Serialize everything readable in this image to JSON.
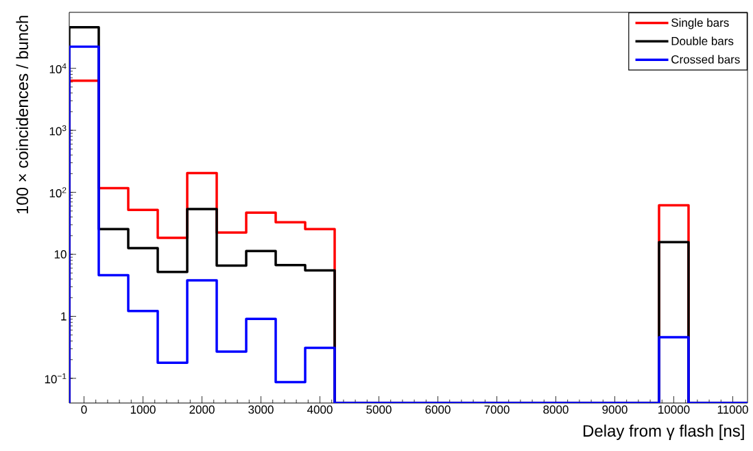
{
  "chart_data": {
    "type": "histogram",
    "xlabel": "Delay from γ flash [ns]",
    "ylabel": "100 × coincidences / bunch",
    "bins": [
      -250,
      250,
      750,
      1250,
      1750,
      2250,
      2750,
      3250,
      3750,
      4250,
      4750,
      5250,
      5750,
      6250,
      6750,
      7250,
      7750,
      8250,
      8750,
      9250,
      9750,
      10250,
      10750,
      11250
    ],
    "series": [
      {
        "name": "Single bars",
        "color": "#ff0000",
        "values": [
          6300,
          117,
          52,
          18.5,
          205,
          22.5,
          47,
          33,
          25.6,
          null,
          null,
          null,
          null,
          null,
          null,
          null,
          null,
          null,
          null,
          null,
          62,
          null,
          null
        ]
      },
      {
        "name": "Double bars",
        "color": "#000000",
        "values": [
          46000,
          25.6,
          12.6,
          5.2,
          53.6,
          6.6,
          11.3,
          6.7,
          5.5,
          null,
          null,
          null,
          null,
          null,
          null,
          null,
          null,
          null,
          null,
          null,
          15.7,
          null,
          null
        ]
      },
      {
        "name": "Crossed bars",
        "color": "#0000ff",
        "values": [
          22400,
          4.6,
          1.22,
          0.178,
          3.8,
          0.27,
          0.91,
          0.087,
          0.31,
          null,
          null,
          null,
          null,
          null,
          null,
          null,
          null,
          null,
          null,
          null,
          0.46,
          null,
          null
        ]
      }
    ],
    "xlim": [
      -250,
      11250
    ],
    "ylim": [
      0.04,
      80000
    ],
    "log": "y",
    "xticks": [
      0,
      1000,
      2000,
      3000,
      4000,
      5000,
      6000,
      7000,
      8000,
      9000,
      10000,
      11000
    ],
    "yticks": [
      {
        "value": 0.1,
        "label": "10$^{−1}$"
      },
      1,
      10,
      {
        "value": 100,
        "label": "10$^{2}$"
      },
      {
        "value": 1000,
        "label": "10$^{3}$"
      },
      {
        "value": 10000,
        "label": "10$^{4}$"
      }
    ],
    "legend": "top right",
    "grid": false
  }
}
